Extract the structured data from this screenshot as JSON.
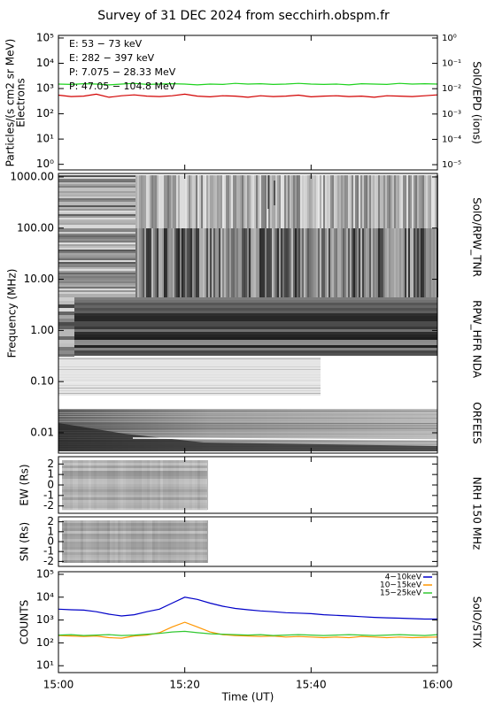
{
  "title": "Survey of 31 DEC 2024 from secchirh.obspm.fr",
  "chart_data": [
    {
      "type": "line",
      "log": true,
      "y_label": "Particles/(s cm2 sr MeV)",
      "y_label2": "Electrons",
      "side_label": "SolO/EPD (ions)",
      "xlim": [
        "15:00",
        "16:00"
      ],
      "ylim": [
        0.6,
        127000
      ],
      "yticks": [
        {
          "value": 1,
          "label": "10⁰"
        },
        {
          "value": 10,
          "label": "10¹"
        },
        {
          "value": 100,
          "label": "10²"
        },
        {
          "value": 1000,
          "label": "10³"
        },
        {
          "value": 10000,
          "label": "10⁴"
        },
        {
          "value": 100000,
          "label": "10⁵"
        }
      ],
      "y2lim": [
        6.2e-06,
        1.27
      ],
      "y2ticks": [
        {
          "value": 1e-05,
          "label": "10⁻⁵"
        },
        {
          "value": 0.0001,
          "label": "10⁻⁴"
        },
        {
          "value": 0.001,
          "label": "10⁻³"
        },
        {
          "value": 0.01,
          "label": "10⁻²"
        },
        {
          "value": 0.1,
          "label": "10⁻¹"
        },
        {
          "value": 1,
          "label": "10⁰"
        }
      ],
      "x": [
        "15:00",
        "15:02",
        "15:04",
        "15:06",
        "15:08",
        "15:10",
        "15:12",
        "15:14",
        "15:16",
        "15:18",
        "15:20",
        "15:22",
        "15:24",
        "15:26",
        "15:28",
        "15:30",
        "15:32",
        "15:34",
        "15:36",
        "15:38",
        "15:40",
        "15:42",
        "15:44",
        "15:46",
        "15:48",
        "15:50",
        "15:52",
        "15:54",
        "15:56",
        "15:58",
        "16:00"
      ],
      "series": [
        {
          "name": "E: 53 − 73 keV",
          "color": "#1ed21e",
          "values": [
            1500,
            1450,
            1550,
            1500,
            1400,
            1500,
            1600,
            1450,
            1500,
            1550,
            1500,
            1400,
            1500,
            1450,
            1600,
            1500,
            1550,
            1450,
            1500,
            1600,
            1500,
            1450,
            1500,
            1400,
            1550,
            1500,
            1450,
            1600,
            1500,
            1550,
            1500
          ]
        },
        {
          "name": "E: 282 − 397 keV",
          "color": "#d20000",
          "values": [
            550,
            480,
            500,
            600,
            450,
            520,
            560,
            500,
            480,
            520,
            600,
            500,
            470,
            520,
            500,
            450,
            520,
            480,
            500,
            550,
            470,
            500,
            520,
            480,
            500,
            450,
            520,
            500,
            480,
            520,
            560
          ]
        },
        {
          "name": "P: 7.075 − 28.33 MeV",
          "color": "#000000",
          "values": [
            null,
            null,
            null,
            null,
            null,
            null,
            null,
            null,
            null,
            null,
            null,
            null,
            null,
            null,
            null,
            null,
            null,
            null,
            null,
            null,
            null,
            null,
            null,
            null,
            null,
            null,
            null,
            null,
            null,
            null,
            null
          ]
        },
        {
          "name": "P: 47.05 − 104.8 MeV",
          "color": "#0000c8",
          "values": [
            null,
            null,
            null,
            null,
            null,
            null,
            null,
            null,
            null,
            null,
            null,
            null,
            null,
            null,
            null,
            null,
            null,
            null,
            null,
            null,
            null,
            null,
            null,
            null,
            null,
            null,
            null,
            null,
            null,
            null,
            null
          ]
        }
      ]
    },
    {
      "type": "spectrogram",
      "log": true,
      "y_label": "Frequency (MHz)",
      "ylim": [
        0.004,
        1170
      ],
      "yticks": [
        0.01,
        {
          "value": 0.1,
          "label": "0.10"
        },
        {
          "value": 1,
          "label": "1.00"
        },
        {
          "value": 10,
          "label": "10.00"
        },
        {
          "value": 100,
          "label": "100.00"
        },
        {
          "value": 1000,
          "label": "1000.00"
        }
      ],
      "instruments": [
        "SolO/RPW_TNR",
        "RPW_HFR",
        "NDA",
        "ORFEES"
      ]
    },
    {
      "type": "image",
      "y_label": "EW (Rs)",
      "side_label": "NRH 150 MHz",
      "ylim": [
        -2.7,
        2.7
      ],
      "yticks": [
        -2,
        -1,
        0,
        1,
        2
      ]
    },
    {
      "type": "image",
      "y_label": "SN (Rs)",
      "ylim": [
        -2.5,
        2.5
      ],
      "yticks": [
        -2,
        -1,
        0,
        1,
        2
      ]
    },
    {
      "type": "line",
      "log": true,
      "y_label": "COUNTS",
      "side_label": "SolO/STIX",
      "x_label": "Time (UT)",
      "xlim": [
        "15:00",
        "16:00"
      ],
      "xticks": [
        "15:00",
        "15:20",
        "15:40",
        "16:00"
      ],
      "ylim": [
        5,
        130000
      ],
      "yticks": [
        {
          "value": 10,
          "label": "10¹"
        },
        {
          "value": 100,
          "label": "10²"
        },
        {
          "value": 1000,
          "label": "10³"
        },
        {
          "value": 10000,
          "label": "10⁴"
        },
        {
          "value": 100000,
          "label": "10⁵"
        }
      ],
      "legend": "upper right",
      "x": [
        "15:00",
        "15:02",
        "15:04",
        "15:06",
        "15:08",
        "15:10",
        "15:12",
        "15:14",
        "15:16",
        "15:18",
        "15:20",
        "15:22",
        "15:24",
        "15:26",
        "15:28",
        "15:30",
        "15:32",
        "15:34",
        "15:36",
        "15:38",
        "15:40",
        "15:42",
        "15:44",
        "15:46",
        "15:48",
        "15:50",
        "15:52",
        "15:54",
        "15:56",
        "15:58",
        "16:00"
      ],
      "series": [
        {
          "name": "4−10keV",
          "color": "#0000c8",
          "values": [
            3000,
            2800,
            2700,
            2300,
            1800,
            1500,
            1700,
            2300,
            3000,
            5500,
            10000,
            8000,
            5500,
            4000,
            3200,
            2800,
            2500,
            2300,
            2100,
            2000,
            1900,
            1700,
            1600,
            1500,
            1400,
            1300,
            1250,
            1200,
            1150,
            1100,
            1100
          ]
        },
        {
          "name": "10−15keV",
          "color": "#ff9600",
          "values": [
            210,
            200,
            190,
            200,
            170,
            160,
            200,
            220,
            280,
            500,
            800,
            500,
            300,
            230,
            210,
            200,
            190,
            200,
            180,
            190,
            180,
            170,
            180,
            170,
            190,
            180,
            170,
            180,
            170,
            175,
            180
          ]
        },
        {
          "name": "15−25keV",
          "color": "#32c832",
          "values": [
            220,
            230,
            210,
            220,
            230,
            210,
            220,
            240,
            260,
            300,
            320,
            280,
            250,
            240,
            230,
            220,
            230,
            210,
            220,
            230,
            220,
            210,
            220,
            230,
            220,
            210,
            220,
            230,
            220,
            210,
            230
          ]
        }
      ]
    }
  ]
}
